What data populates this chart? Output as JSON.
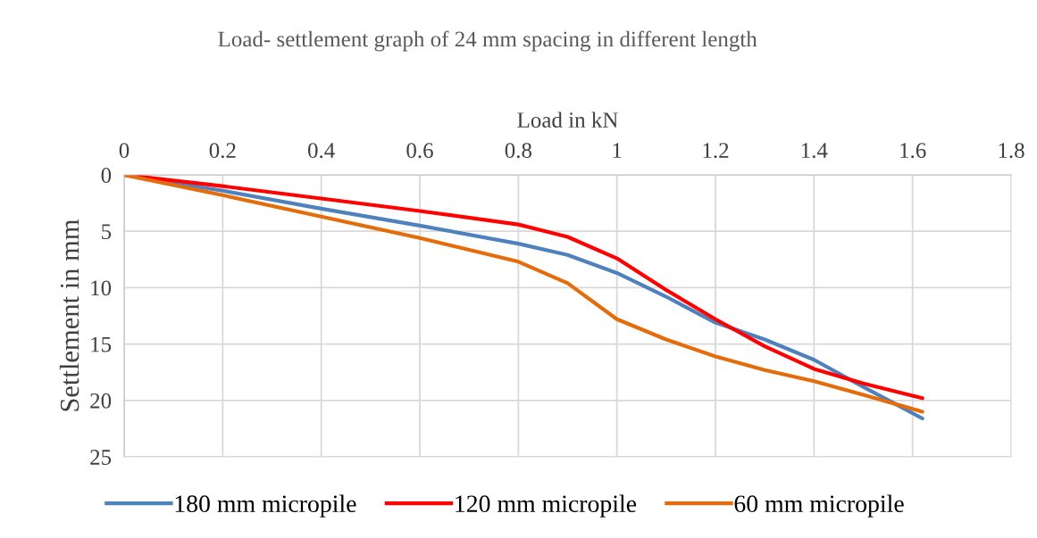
{
  "chart_data": {
    "type": "line",
    "title": "Load- settlement graph of 24 mm spacing in different length",
    "xlabel": "Load in kN",
    "ylabel": "Settlement in mm",
    "x": [
      0,
      0.2,
      0.4,
      0.6,
      0.8,
      0.9,
      1.0,
      1.1,
      1.2,
      1.3,
      1.4,
      1.5,
      1.62
    ],
    "series": [
      {
        "name": "180 mm micropile",
        "color": "#4f81bd",
        "values": [
          0,
          1.4,
          3.0,
          4.5,
          6.1,
          7.1,
          8.7,
          10.8,
          13.1,
          14.6,
          16.4,
          18.8,
          21.6
        ]
      },
      {
        "name": "120 mm micropile",
        "color": "#ff0000",
        "values": [
          0,
          1.0,
          2.1,
          3.2,
          4.4,
          5.5,
          7.4,
          10.2,
          12.8,
          15.2,
          17.2,
          18.5,
          19.8
        ]
      },
      {
        "name": "60 mm micropile",
        "color": "#e46c0a",
        "values": [
          0,
          1.8,
          3.7,
          5.6,
          7.7,
          9.6,
          12.8,
          14.6,
          16.1,
          17.3,
          18.3,
          19.5,
          21.0
        ]
      }
    ],
    "xlim": [
      0,
      1.8
    ],
    "xticks": [
      0,
      0.2,
      0.4,
      0.6,
      0.8,
      1,
      1.2,
      1.4,
      1.6,
      1.8
    ],
    "ylim": [
      25,
      0
    ],
    "yticks": [
      0,
      5,
      10,
      15,
      20,
      25
    ],
    "grid": true,
    "legend": "bottom",
    "marker": "none",
    "line_style": "solid"
  }
}
